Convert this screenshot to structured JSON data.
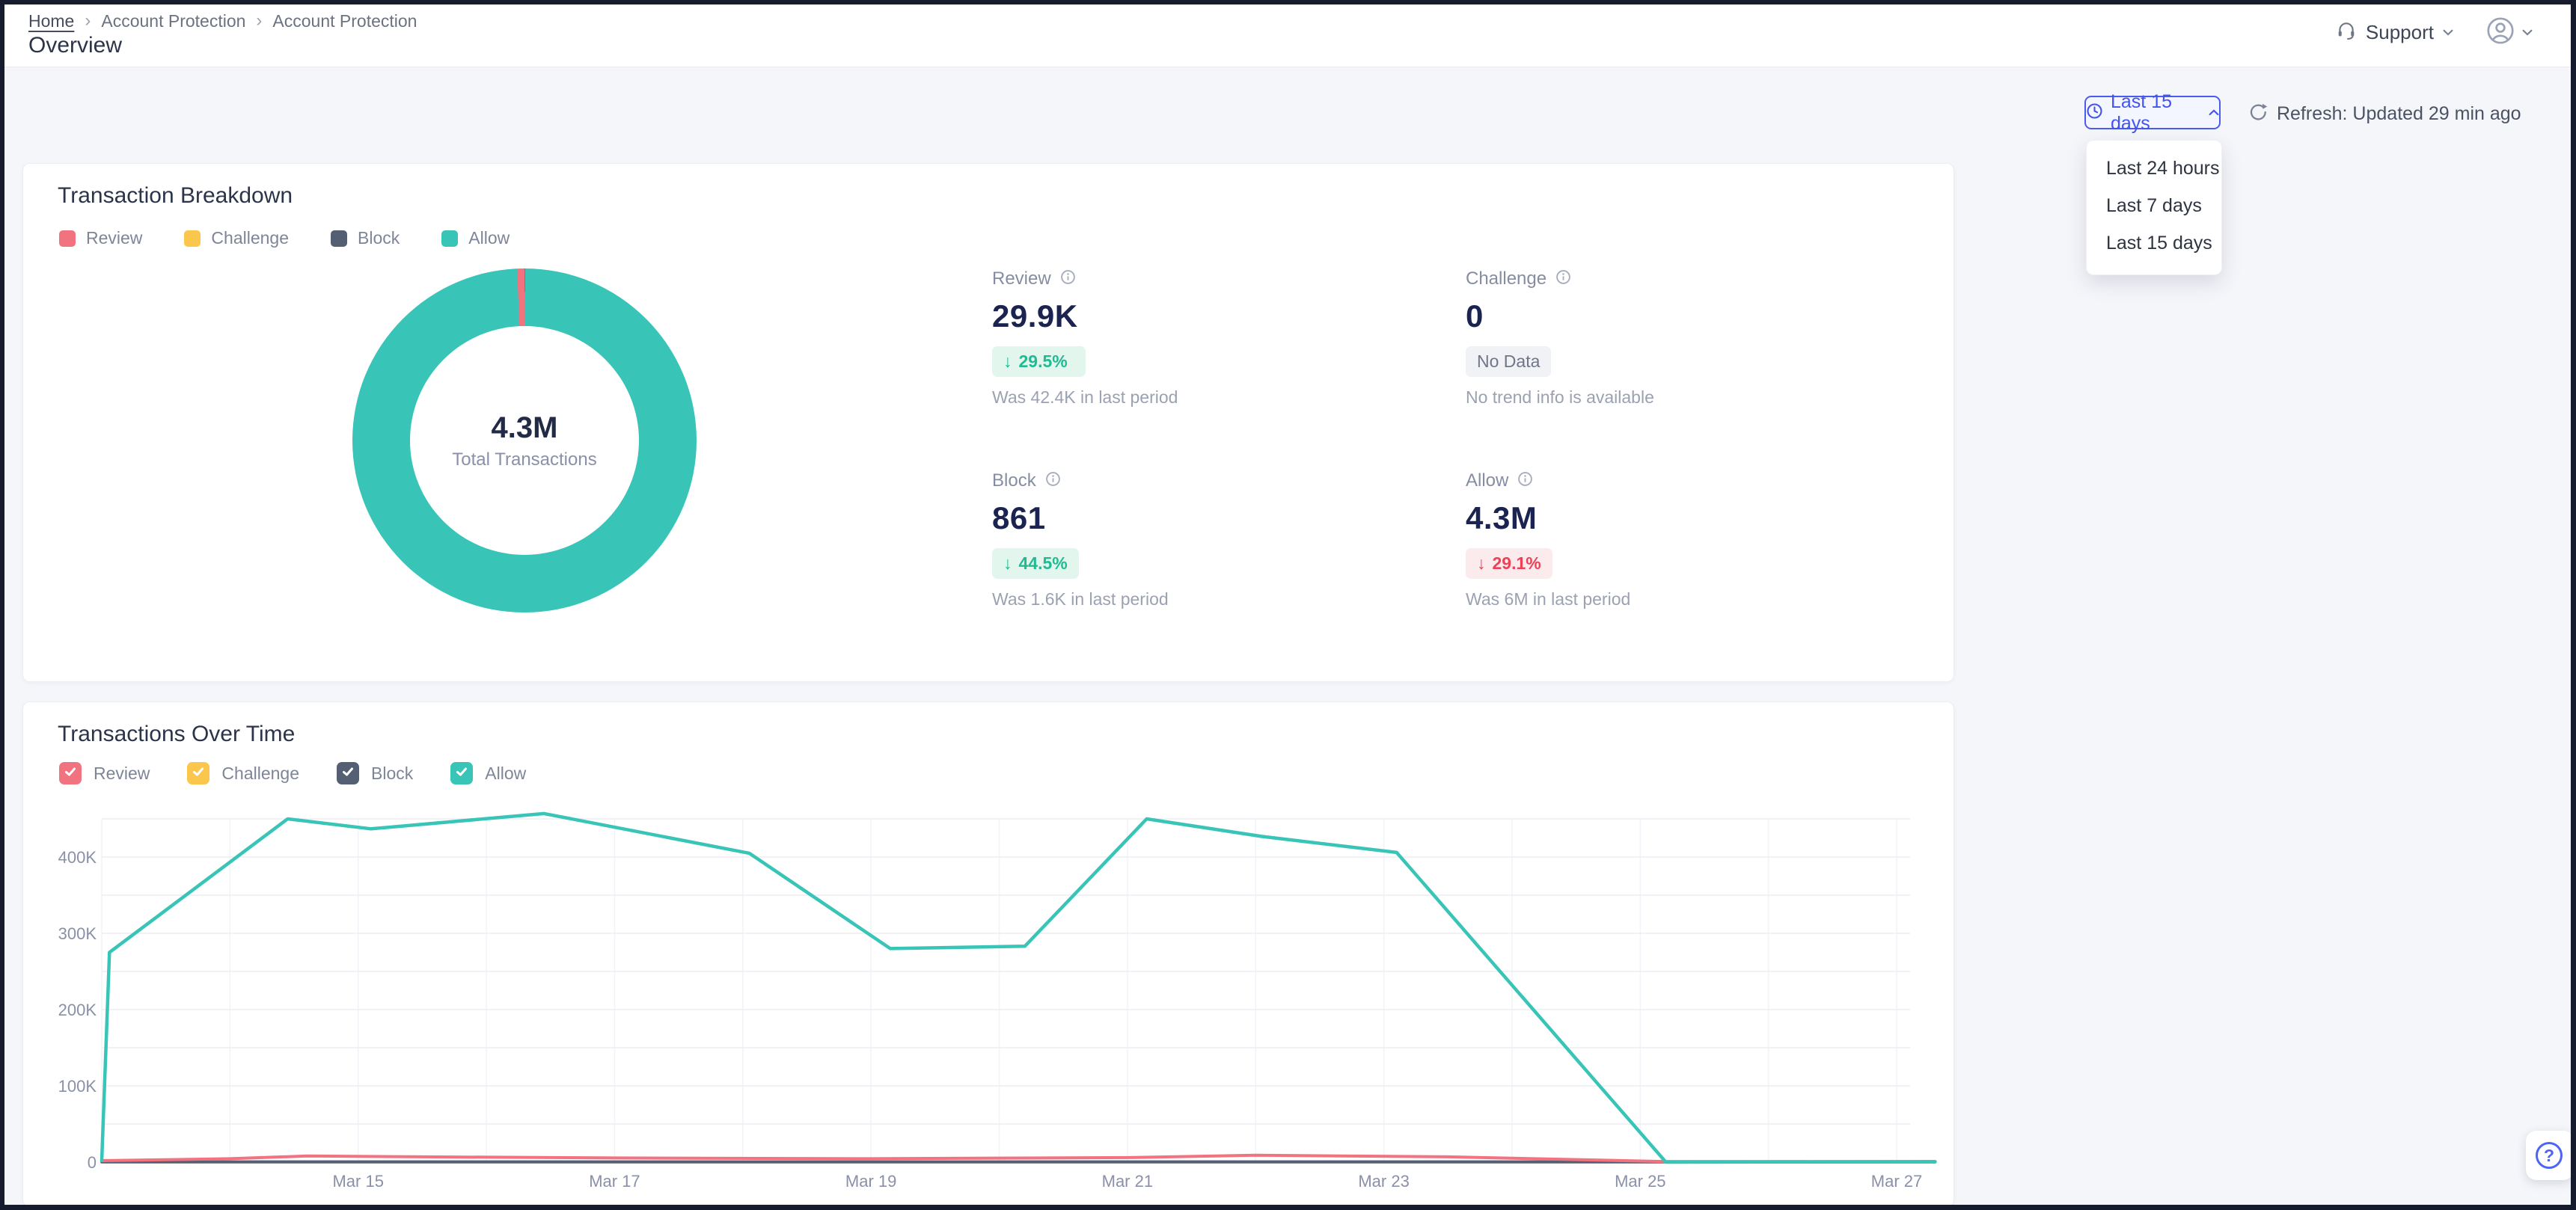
{
  "theme": {
    "accent_blue": "#4354ee",
    "positive_green": "#1fbb92",
    "negative_red": "#ee4156",
    "page_bg": "#f5f6fa",
    "review_color": "#F0737F",
    "challenge_color": "#FAC64B",
    "block_color": "#555F73",
    "allow_color": "#38C5B7"
  },
  "header": {
    "breadcrumb": {
      "items": [
        "Home",
        "Account Protection",
        "Account Protection"
      ],
      "separator": "›"
    },
    "title": "Overview",
    "support_label": "Support"
  },
  "toolbar": {
    "time_range_button": "Last 15 days",
    "dropdown_options": [
      "Last 24 hours",
      "Last 7 days",
      "Last 15 days"
    ],
    "refresh_label": "Refresh: Updated 29 min ago"
  },
  "breakdown_card": {
    "title": "Transaction Breakdown",
    "legend": [
      {
        "label": "Review",
        "color": "#F0737F"
      },
      {
        "label": "Challenge",
        "color": "#FAC64B"
      },
      {
        "label": "Block",
        "color": "#555F73"
      },
      {
        "label": "Allow",
        "color": "#38C5B7"
      }
    ],
    "donut": {
      "center_value": "4.3M",
      "center_label": "Total Transactions",
      "chart_data": {
        "type": "pie",
        "segments": [
          {
            "label": "Review",
            "value": 29900,
            "color": "#F0737F"
          },
          {
            "label": "Challenge",
            "value": 0,
            "color": "#FAC64B"
          },
          {
            "label": "Block",
            "value": 861,
            "color": "#555F73"
          },
          {
            "label": "Allow",
            "value": 4300000,
            "color": "#38C5B7"
          }
        ],
        "inner_radius_ratio": 0.66
      }
    },
    "stats": [
      {
        "label": "Review",
        "value": "29.9K",
        "badge_class": "badge badge-positive",
        "trend_arrow": "↓",
        "trend_pct": "29.5%",
        "caption": "Was 42.4K in last period"
      },
      {
        "label": "Challenge",
        "value": "0",
        "badge_class": "badge badge-neutral",
        "badge_text": "No Data",
        "caption": "No trend info is available"
      },
      {
        "label": "Block",
        "value": "861",
        "badge_class": "badge badge-positive",
        "trend_arrow": "↓",
        "trend_pct": "44.5%",
        "caption": "Was 1.6K in last period"
      },
      {
        "label": "Allow",
        "value": "4.3M",
        "badge_class": "badge badge-negative",
        "trend_arrow": "↓",
        "trend_pct": "29.1%",
        "caption": "Was 6M in last period"
      }
    ]
  },
  "overtime_card": {
    "title": "Transactions Over Time",
    "legend": [
      {
        "label": "Review",
        "color": "#F0737F",
        "checked": true
      },
      {
        "label": "Challenge",
        "color": "#FAC64B",
        "checked": true
      },
      {
        "label": "Block",
        "color": "#555F73",
        "checked": true
      },
      {
        "label": "Allow",
        "color": "#38C5B7",
        "checked": true
      }
    ],
    "chart_data": {
      "type": "line",
      "x_axis_start": "Mar 13",
      "day_span": 14,
      "x_ticks": [
        {
          "d": 2,
          "label": "Mar 15"
        },
        {
          "d": 4,
          "label": "Mar 17"
        },
        {
          "d": 6,
          "label": "Mar 19"
        },
        {
          "d": 8,
          "label": "Mar 21"
        },
        {
          "d": 10,
          "label": "Mar 23"
        },
        {
          "d": 12,
          "label": "Mar 25"
        },
        {
          "d": 14,
          "label": "Mar 27"
        }
      ],
      "ylim": [
        0,
        450000
      ],
      "y_grid_step": 50000,
      "y_label_step": 100000,
      "grid": true,
      "series": [
        {
          "name": "Challenge",
          "color": "#FAC64B",
          "points": [
            [
              0,
              800
            ],
            [
              14.3,
              800
            ]
          ]
        },
        {
          "name": "Block",
          "color": "#555F73",
          "points": [
            [
              0,
              300
            ],
            [
              14.3,
              300
            ]
          ]
        },
        {
          "name": "Review",
          "color": "#F0737F",
          "points": [
            [
              0,
              2000
            ],
            [
              1,
              4500
            ],
            [
              1.6,
              8000
            ],
            [
              2.5,
              7000
            ],
            [
              4,
              5500
            ],
            [
              6,
              4500
            ],
            [
              8,
              6000
            ],
            [
              9,
              9000
            ],
            [
              10.5,
              7000
            ],
            [
              12.2,
              800
            ],
            [
              14.3,
              800
            ]
          ]
        },
        {
          "name": "Allow",
          "color": "#38C5B7",
          "points": [
            [
              0,
              2000
            ],
            [
              0.06,
              275000
            ],
            [
              1.45,
              450000
            ],
            [
              2.1,
              437000
            ],
            [
              3.45,
              457000
            ],
            [
              5.05,
              405000
            ],
            [
              6.15,
              280000
            ],
            [
              7.2,
              283000
            ],
            [
              8.15,
              450000
            ],
            [
              9.05,
              427000
            ],
            [
              10.1,
              406000
            ],
            [
              12.2,
              0
            ],
            [
              14.3,
              600
            ]
          ]
        }
      ]
    }
  },
  "help_button": {
    "glyph": "?"
  }
}
